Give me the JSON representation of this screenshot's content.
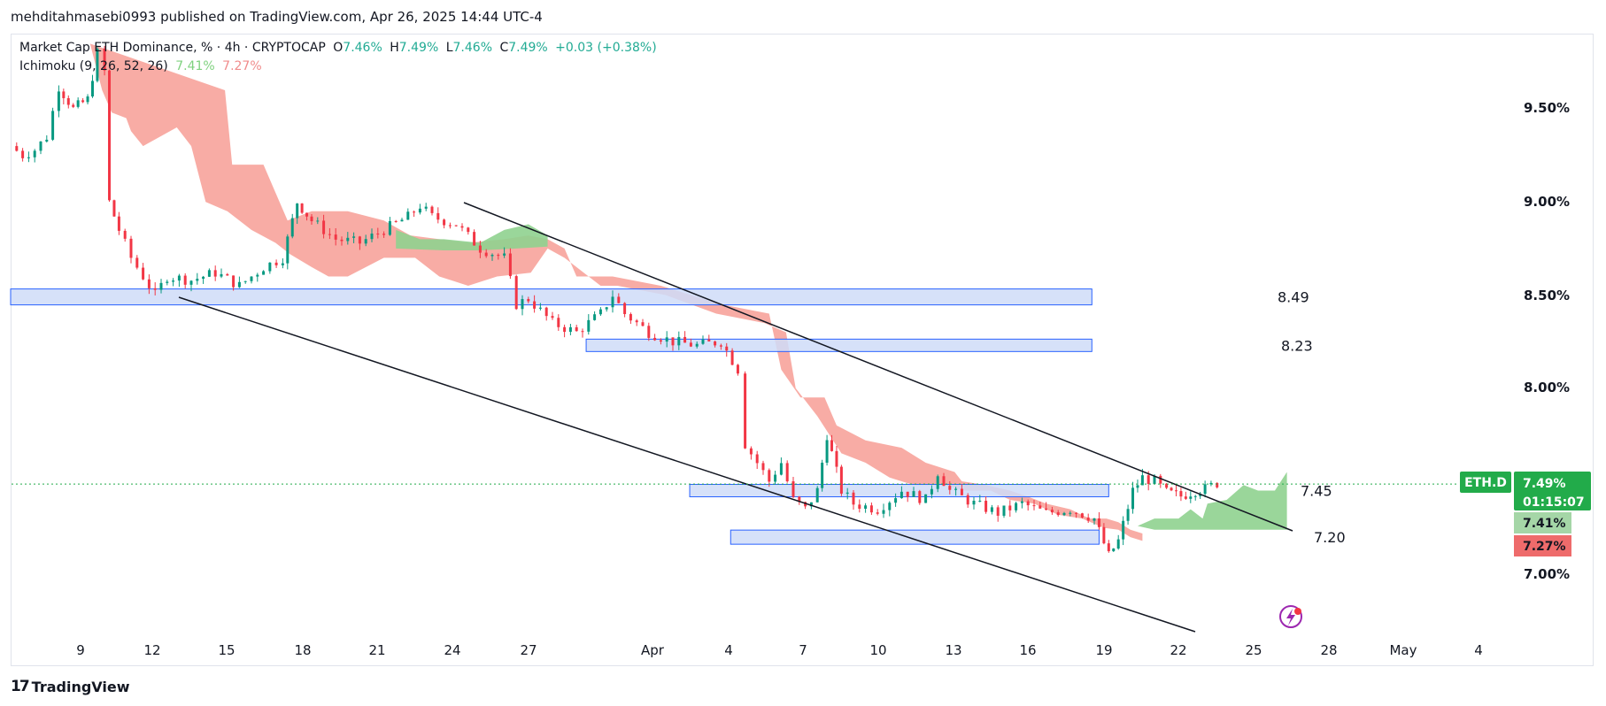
{
  "header": {
    "publish_line": "mehditahmasebi0993 published on TradingView.com, Apr 26, 2025 14:44 UTC-4"
  },
  "legend": {
    "symbol": "Market Cap ETH Dominance, % · 4h · CRYPTOCAP",
    "o_label": "O",
    "o": "7.46%",
    "h_label": "H",
    "h": "7.49%",
    "l_label": "L",
    "l": "7.46%",
    "c_label": "C",
    "c": "7.49%",
    "change": "+0.03 (+0.38%)",
    "indicator": "Ichimoku (9, 26, 52, 26)",
    "ind_a": "7.41%",
    "ind_b": "7.27%"
  },
  "brand": {
    "name": "TradingView",
    "logo_glyph": "17"
  },
  "colors": {
    "up": "#089981",
    "down": "#f23645",
    "cloud_bear": "#f7a39b",
    "cloud_bull": "#8fd18f",
    "zone_fill": "#cfdcf8",
    "zone_stroke": "#2962ff",
    "tag_green": "#22ab4a",
    "tag_red": "#ee6b6b",
    "tag_light_green": "#a5d6a7"
  },
  "chart_data": {
    "type": "candlestick",
    "x_ticks": [
      "9",
      "12",
      "15",
      "18",
      "21",
      "24",
      "27",
      "Apr",
      "4",
      "7",
      "10",
      "13",
      "16",
      "19",
      "22",
      "25",
      "28",
      "May",
      "4"
    ],
    "y_ticks": [
      "9.50%",
      "9.00%",
      "8.50%",
      "8.00%",
      "7.00%"
    ],
    "y_range": [
      6.7,
      9.9
    ],
    "last_price_tag": {
      "symbol": "ETH.D",
      "price": "7.49%",
      "countdown": "01:15:07"
    },
    "ichimoku_tags": [
      "7.41%",
      "7.27%"
    ],
    "levels": [
      {
        "label": "8.49",
        "value": 8.49
      },
      {
        "label": "8.23",
        "value": 8.23
      },
      {
        "label": "7.45",
        "value": 7.45
      },
      {
        "label": "7.20",
        "value": 7.2
      }
    ],
    "trendlines": [
      {
        "from": [
          "Mar 13",
          8.47
        ],
        "to": [
          "Apr 22",
          6.72
        ]
      },
      {
        "from": [
          "Mar 24",
          9.0
        ],
        "to": [
          "Apr 26",
          7.28
        ]
      }
    ],
    "price_path": [
      [
        0,
        9.3
      ],
      [
        0.5,
        9.25
      ],
      [
        1.0,
        9.28
      ],
      [
        1.5,
        9.35
      ],
      [
        2.0,
        9.62
      ],
      [
        2.6,
        9.5
      ],
      [
        3.2,
        9.55
      ],
      [
        3.6,
        9.8
      ],
      [
        3.9,
        9.7
      ],
      [
        4.1,
        9.0
      ],
      [
        4.5,
        8.85
      ],
      [
        5.0,
        8.7
      ],
      [
        5.5,
        8.6
      ],
      [
        6.0,
        8.5
      ],
      [
        6.5,
        8.6
      ],
      [
        7.5,
        8.58
      ],
      [
        8.5,
        8.62
      ],
      [
        9.5,
        8.55
      ],
      [
        10.5,
        8.65
      ],
      [
        11.3,
        8.7
      ],
      [
        11.9,
        9.0
      ],
      [
        12.5,
        8.9
      ],
      [
        13.5,
        8.8
      ],
      [
        14.5,
        8.78
      ],
      [
        15.5,
        8.85
      ],
      [
        16.5,
        8.92
      ],
      [
        17.0,
        8.98
      ],
      [
        17.5,
        8.92
      ],
      [
        18.5,
        8.88
      ],
      [
        19.5,
        8.75
      ],
      [
        20.5,
        8.7
      ],
      [
        21.0,
        8.45
      ],
      [
        21.5,
        8.48
      ],
      [
        22.5,
        8.35
      ],
      [
        23.5,
        8.3
      ],
      [
        24.5,
        8.4
      ],
      [
        25.0,
        8.5
      ],
      [
        25.5,
        8.4
      ],
      [
        26.5,
        8.3
      ],
      [
        27.5,
        8.25
      ],
      [
        28.5,
        8.23
      ],
      [
        29.5,
        8.25
      ],
      [
        30.2,
        8.1
      ],
      [
        30.5,
        7.7
      ],
      [
        31.0,
        7.6
      ],
      [
        31.5,
        7.5
      ],
      [
        32.0,
        7.6
      ],
      [
        32.5,
        7.4
      ],
      [
        33.0,
        7.35
      ],
      [
        33.5,
        7.45
      ],
      [
        33.9,
        7.75
      ],
      [
        34.5,
        7.45
      ],
      [
        35.0,
        7.38
      ],
      [
        36.0,
        7.35
      ],
      [
        37.0,
        7.45
      ],
      [
        38.0,
        7.4
      ],
      [
        38.5,
        7.55
      ],
      [
        39.0,
        7.45
      ],
      [
        40.0,
        7.38
      ],
      [
        41.0,
        7.33
      ],
      [
        42.0,
        7.38
      ],
      [
        43.0,
        7.33
      ],
      [
        44.0,
        7.35
      ],
      [
        45.0,
        7.3
      ],
      [
        45.6,
        7.1
      ],
      [
        46.0,
        7.18
      ],
      [
        46.6,
        7.45
      ],
      [
        47.0,
        7.52
      ],
      [
        47.5,
        7.5
      ],
      [
        48.0,
        7.44
      ],
      [
        48.6,
        7.42
      ],
      [
        49.2,
        7.45
      ],
      [
        49.6,
        7.46
      ],
      [
        50.1,
        7.49
      ]
    ]
  }
}
